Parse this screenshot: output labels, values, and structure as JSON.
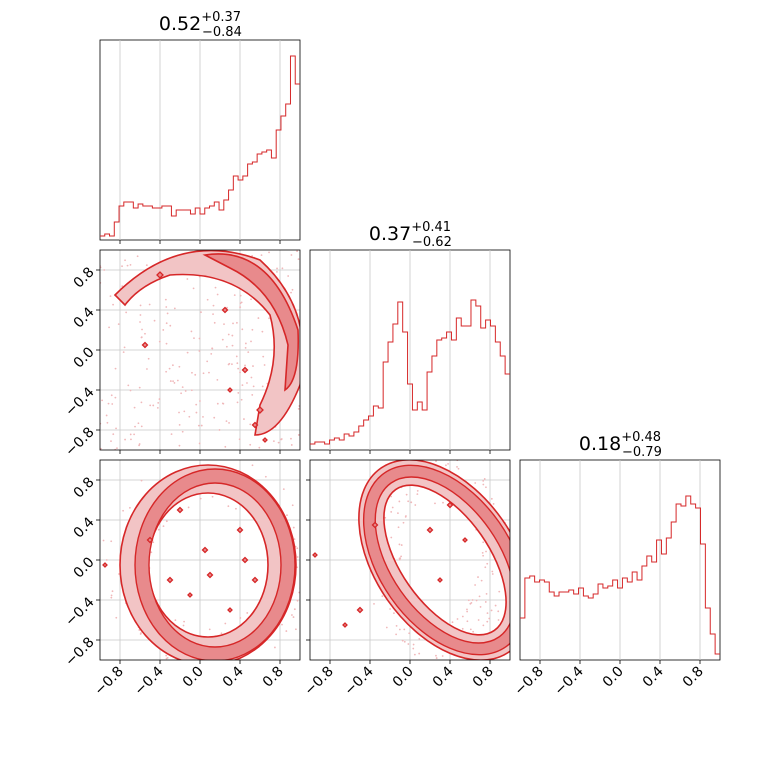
{
  "figure": {
    "color": "#d62728",
    "fill_light": "#f2c4c5",
    "fill_mid": "#e88a8c",
    "grid_color": "#c8c8c8"
  },
  "chart_data": [
    {
      "type": "histogram",
      "panel": "diag-1",
      "title": {
        "value": "0.52",
        "plus": "+0.37",
        "minus": "−0.84"
      },
      "xlim": [
        -1,
        1
      ],
      "grid": true,
      "bins_relative_heights": [
        0.02,
        0.03,
        0.02,
        0.09,
        0.17,
        0.19,
        0.19,
        0.16,
        0.18,
        0.17,
        0.17,
        0.16,
        0.16,
        0.17,
        0.17,
        0.12,
        0.15,
        0.15,
        0.15,
        0.13,
        0.16,
        0.13,
        0.16,
        0.17,
        0.19,
        0.15,
        0.2,
        0.25,
        0.32,
        0.3,
        0.32,
        0.38,
        0.39,
        0.43,
        0.44,
        0.45,
        0.41,
        0.55,
        0.62,
        0.68,
        0.92,
        0.78
      ]
    },
    {
      "type": "histogram",
      "panel": "diag-2",
      "title": {
        "value": "0.37",
        "plus": "+0.41",
        "minus": "−0.62"
      },
      "xlim": [
        -1,
        1
      ],
      "grid": true,
      "bins_relative_heights": [
        0.03,
        0.04,
        0.04,
        0.03,
        0.05,
        0.06,
        0.05,
        0.08,
        0.07,
        0.09,
        0.12,
        0.15,
        0.17,
        0.22,
        0.21,
        0.44,
        0.54,
        0.63,
        0.74,
        0.59,
        0.33,
        0.2,
        0.24,
        0.2,
        0.39,
        0.47,
        0.55,
        0.56,
        0.59,
        0.55,
        0.66,
        0.62,
        0.62,
        0.75,
        0.72,
        0.61,
        0.65,
        0.62,
        0.54,
        0.47,
        0.38
      ]
    },
    {
      "type": "histogram",
      "panel": "diag-3",
      "title": {
        "value": "0.18",
        "plus": "+0.48",
        "minus": "−0.79"
      },
      "xlim": [
        -1,
        1
      ],
      "grid": true,
      "bins_relative_heights": [
        0.21,
        0.41,
        0.42,
        0.39,
        0.4,
        0.39,
        0.34,
        0.32,
        0.34,
        0.34,
        0.35,
        0.33,
        0.36,
        0.32,
        0.31,
        0.33,
        0.38,
        0.36,
        0.37,
        0.4,
        0.36,
        0.41,
        0.39,
        0.44,
        0.4,
        0.47,
        0.52,
        0.49,
        0.6,
        0.53,
        0.61,
        0.69,
        0.78,
        0.77,
        0.82,
        0.78,
        0.76,
        0.58,
        0.26,
        0.13,
        0.03
      ]
    },
    {
      "type": "contour",
      "panel": "2d-row2-col1",
      "xlim": [
        -1,
        1
      ],
      "ylim": [
        -1,
        1
      ],
      "grid": true,
      "description_points": "annular distribution, dense on right edge"
    },
    {
      "type": "contour",
      "panel": "2d-row3-col1",
      "xlim": [
        -1,
        1
      ],
      "ylim": [
        -1,
        1
      ],
      "grid": true
    },
    {
      "type": "contour",
      "panel": "2d-row3-col2",
      "xlim": [
        -1,
        1
      ],
      "ylim": [
        -1,
        1
      ],
      "grid": true
    }
  ],
  "ticks": {
    "x": [
      "−0.8",
      "−0.4",
      "0.0",
      "0.4",
      "0.8"
    ],
    "y": [
      "0.8",
      "0.4",
      "0.0",
      "−0.4",
      "−0.8"
    ],
    "values": [
      -0.8,
      -0.4,
      0.0,
      0.4,
      0.8
    ]
  }
}
